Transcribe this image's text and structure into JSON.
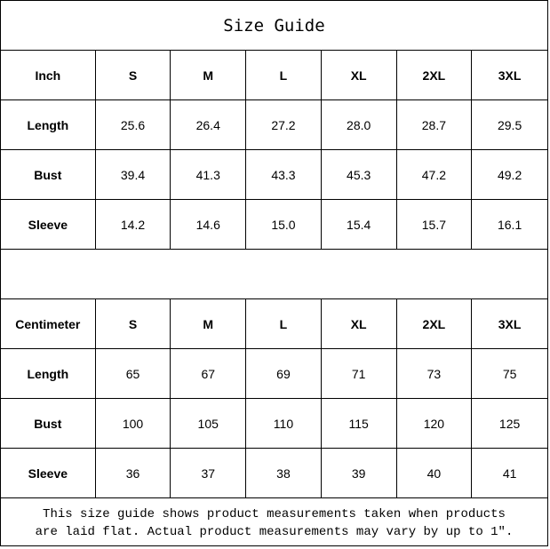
{
  "title": "Size Guide",
  "sizes": [
    "S",
    "M",
    "L",
    "XL",
    "2XL",
    "3XL"
  ],
  "inch": {
    "unit_label": "Inch",
    "rows": [
      {
        "label": "Length",
        "values": [
          "25.6",
          "26.4",
          "27.2",
          "28.0",
          "28.7",
          "29.5"
        ]
      },
      {
        "label": "Bust",
        "values": [
          "39.4",
          "41.3",
          "43.3",
          "45.3",
          "47.2",
          "49.2"
        ]
      },
      {
        "label": "Sleeve",
        "values": [
          "14.2",
          "14.6",
          "15.0",
          "15.4",
          "15.7",
          "16.1"
        ]
      }
    ]
  },
  "cm": {
    "unit_label": "Centimeter",
    "rows": [
      {
        "label": "Length",
        "values": [
          "65",
          "67",
          "69",
          "71",
          "73",
          "75"
        ]
      },
      {
        "label": "Bust",
        "values": [
          "100",
          "105",
          "110",
          "115",
          "120",
          "125"
        ]
      },
      {
        "label": "Sleeve",
        "values": [
          "36",
          "37",
          "38",
          "39",
          "40",
          "41"
        ]
      }
    ]
  },
  "footer": {
    "line1": "This size guide shows product measurements taken when products",
    "line2": "are laid flat. Actual product measurements may vary by up to 1\"."
  }
}
